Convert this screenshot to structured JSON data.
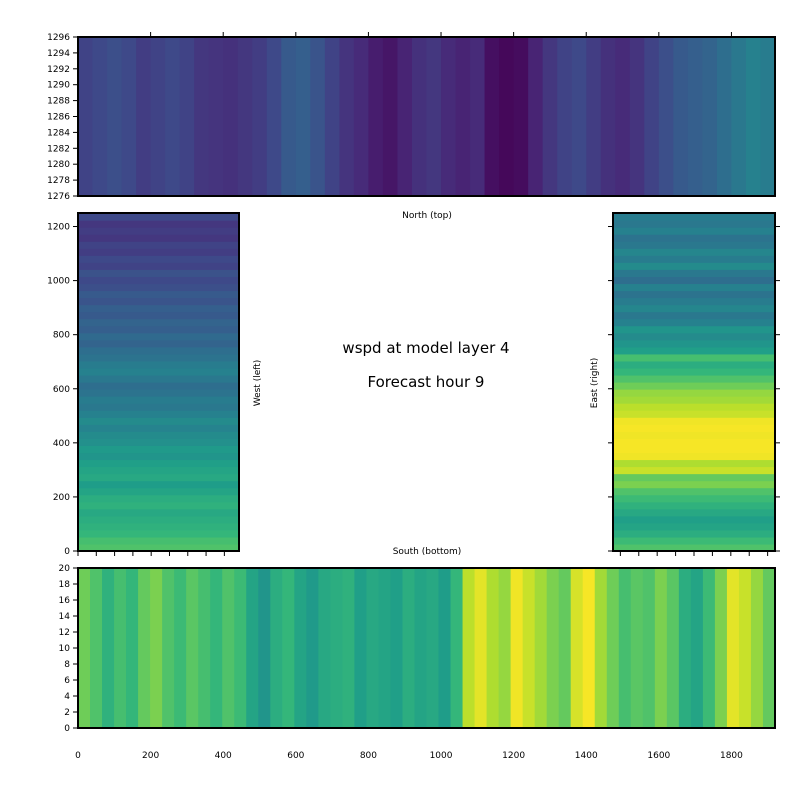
{
  "chart_data": [
    {
      "type": "heatmap",
      "panel": "north",
      "xlabel": "North (top)",
      "xlim": [
        0,
        1920
      ],
      "ylim": [
        1276,
        1296
      ],
      "yticks": [
        1276,
        1278,
        1280,
        1282,
        1284,
        1286,
        1288,
        1290,
        1292,
        1294,
        1296
      ],
      "colormap": "viridis",
      "column_values": [
        0.2,
        0.22,
        0.24,
        0.22,
        0.18,
        0.2,
        0.22,
        0.2,
        0.16,
        0.15,
        0.14,
        0.16,
        0.18,
        0.22,
        0.28,
        0.3,
        0.26,
        0.2,
        0.15,
        0.12,
        0.08,
        0.06,
        0.1,
        0.14,
        0.16,
        0.12,
        0.1,
        0.12,
        0.04,
        0.02,
        0.03,
        0.1,
        0.16,
        0.2,
        0.22,
        0.18,
        0.14,
        0.12,
        0.15,
        0.2,
        0.24,
        0.28,
        0.3,
        0.32,
        0.36,
        0.4,
        0.44,
        0.42
      ]
    },
    {
      "type": "heatmap",
      "panel": "west",
      "ylabel": "West (left)",
      "xlim": [
        0,
        440
      ],
      "ylim": [
        0,
        1250
      ],
      "yticks": [
        0,
        200,
        400,
        600,
        800,
        1000,
        1200
      ],
      "colormap": "viridis",
      "row_values": [
        0.72,
        0.7,
        0.66,
        0.64,
        0.62,
        0.6,
        0.64,
        0.62,
        0.58,
        0.55,
        0.6,
        0.58,
        0.56,
        0.52,
        0.54,
        0.5,
        0.48,
        0.45,
        0.48,
        0.44,
        0.4,
        0.42,
        0.38,
        0.36,
        0.4,
        0.44,
        0.42,
        0.38,
        0.36,
        0.32,
        0.34,
        0.3,
        0.32,
        0.28,
        0.3,
        0.26,
        0.28,
        0.24,
        0.22,
        0.25,
        0.2,
        0.22,
        0.18,
        0.2,
        0.16,
        0.18,
        0.16,
        0.22
      ]
    },
    {
      "type": "heatmap",
      "panel": "east",
      "ylabel": "East (right)",
      "xlim": [
        1480,
        1920
      ],
      "ylim": [
        0,
        1250
      ],
      "colormap": "viridis",
      "row_values": [
        0.72,
        0.68,
        0.62,
        0.58,
        0.56,
        0.6,
        0.64,
        0.68,
        0.72,
        0.8,
        0.76,
        0.92,
        0.88,
        0.98,
        0.99,
        0.99,
        0.98,
        0.99,
        0.98,
        0.92,
        0.9,
        0.86,
        0.84,
        0.78,
        0.72,
        0.66,
        0.62,
        0.7,
        0.56,
        0.52,
        0.48,
        0.52,
        0.44,
        0.4,
        0.46,
        0.42,
        0.38,
        0.44,
        0.36,
        0.4,
        0.48,
        0.42,
        0.46,
        0.4,
        0.38,
        0.44,
        0.4,
        0.42
      ]
    },
    {
      "type": "heatmap",
      "panel": "south",
      "xlabel": "South (bottom)",
      "xlim": [
        0,
        1920
      ],
      "ylim": [
        0,
        20
      ],
      "xticks": [
        0,
        200,
        400,
        600,
        800,
        1000,
        1200,
        1400,
        1600,
        1800
      ],
      "yticks": [
        0,
        2,
        4,
        6,
        8,
        10,
        12,
        14,
        16,
        18,
        20
      ],
      "colormap": "viridis",
      "column_values": [
        0.78,
        0.72,
        0.64,
        0.7,
        0.66,
        0.76,
        0.8,
        0.72,
        0.68,
        0.74,
        0.7,
        0.66,
        0.72,
        0.68,
        0.58,
        0.52,
        0.62,
        0.66,
        0.58,
        0.54,
        0.6,
        0.62,
        0.64,
        0.56,
        0.6,
        0.58,
        0.56,
        0.62,
        0.58,
        0.6,
        0.55,
        0.66,
        0.9,
        0.96,
        0.88,
        0.84,
        0.98,
        0.92,
        0.86,
        0.8,
        0.76,
        0.94,
        0.99,
        0.86,
        0.78,
        0.7,
        0.74,
        0.72,
        0.8,
        0.74,
        0.62,
        0.58,
        0.68,
        0.8,
        0.96,
        0.92,
        0.84,
        0.76
      ]
    }
  ],
  "center": {
    "line1": "wspd at model layer 4",
    "line2": "Forecast hour 9"
  }
}
